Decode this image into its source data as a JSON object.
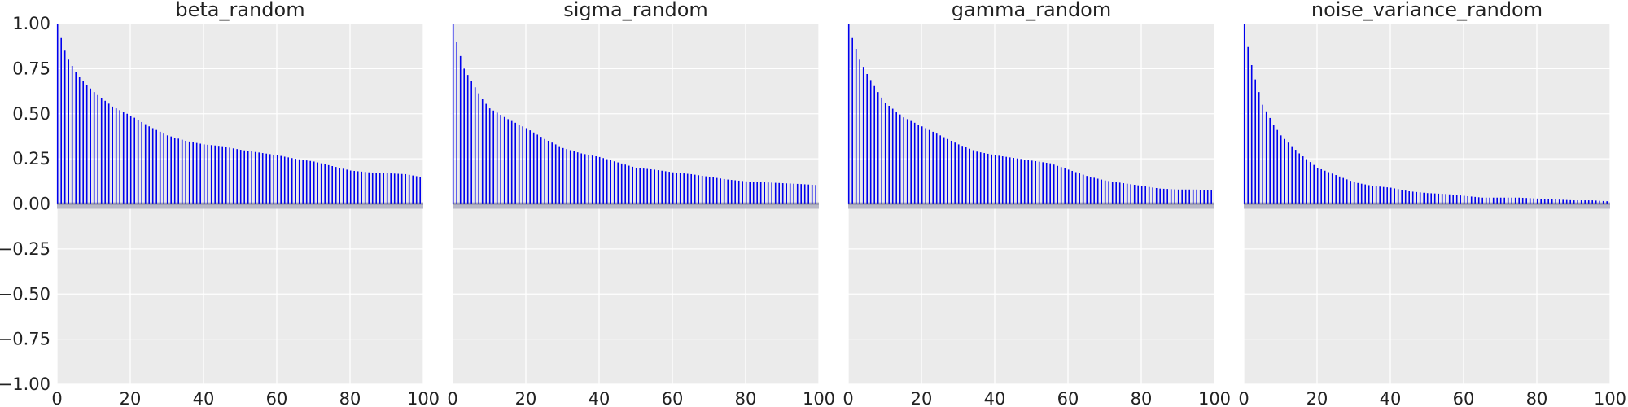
{
  "chart_data": [
    {
      "type": "bar",
      "title": "beta_random",
      "xlabel": "",
      "ylabel": "",
      "xlim": [
        0,
        100
      ],
      "ylim": [
        -1,
        1
      ],
      "xticks": [
        "0",
        "20",
        "40",
        "60",
        "80",
        "100"
      ],
      "yticks": [
        "1.00",
        "0.75",
        "0.50",
        "0.25",
        "0.00",
        "−0.25",
        "−0.50",
        "−0.75",
        "−1.00"
      ],
      "grid": true,
      "bar_color": "#0000ee",
      "anchors": [
        [
          0,
          1.0
        ],
        [
          1,
          0.92
        ],
        [
          2,
          0.85
        ],
        [
          3,
          0.8
        ],
        [
          5,
          0.73
        ],
        [
          8,
          0.66
        ],
        [
          10,
          0.62
        ],
        [
          15,
          0.54
        ],
        [
          20,
          0.49
        ],
        [
          25,
          0.43
        ],
        [
          30,
          0.38
        ],
        [
          35,
          0.35
        ],
        [
          40,
          0.33
        ],
        [
          45,
          0.32
        ],
        [
          50,
          0.3
        ],
        [
          55,
          0.285
        ],
        [
          60,
          0.27
        ],
        [
          65,
          0.25
        ],
        [
          70,
          0.235
        ],
        [
          75,
          0.21
        ],
        [
          80,
          0.185
        ],
        [
          85,
          0.175
        ],
        [
          90,
          0.17
        ],
        [
          95,
          0.165
        ],
        [
          99,
          0.15
        ]
      ]
    },
    {
      "type": "bar",
      "title": "sigma_random",
      "xlabel": "",
      "ylabel": "",
      "xlim": [
        0,
        100
      ],
      "ylim": [
        -1,
        1
      ],
      "xticks": [
        "0",
        "20",
        "40",
        "60",
        "80",
        "100"
      ],
      "yticks": [],
      "grid": true,
      "bar_color": "#0000ee",
      "anchors": [
        [
          0,
          1.0
        ],
        [
          1,
          0.9
        ],
        [
          2,
          0.82
        ],
        [
          3,
          0.75
        ],
        [
          5,
          0.68
        ],
        [
          8,
          0.58
        ],
        [
          10,
          0.53
        ],
        [
          15,
          0.47
        ],
        [
          20,
          0.42
        ],
        [
          25,
          0.36
        ],
        [
          30,
          0.31
        ],
        [
          35,
          0.28
        ],
        [
          40,
          0.26
        ],
        [
          45,
          0.23
        ],
        [
          50,
          0.2
        ],
        [
          55,
          0.19
        ],
        [
          60,
          0.175
        ],
        [
          65,
          0.165
        ],
        [
          70,
          0.15
        ],
        [
          75,
          0.135
        ],
        [
          80,
          0.125
        ],
        [
          85,
          0.12
        ],
        [
          90,
          0.115
        ],
        [
          95,
          0.11
        ],
        [
          99,
          0.105
        ]
      ]
    },
    {
      "type": "bar",
      "title": "gamma_random",
      "xlabel": "",
      "ylabel": "",
      "xlim": [
        0,
        100
      ],
      "ylim": [
        -1,
        1
      ],
      "xticks": [
        "0",
        "20",
        "40",
        "60",
        "80",
        "100"
      ],
      "yticks": [],
      "grid": true,
      "bar_color": "#0000ee",
      "anchors": [
        [
          0,
          1.0
        ],
        [
          1,
          0.92
        ],
        [
          2,
          0.86
        ],
        [
          3,
          0.8
        ],
        [
          5,
          0.72
        ],
        [
          8,
          0.62
        ],
        [
          10,
          0.56
        ],
        [
          15,
          0.48
        ],
        [
          20,
          0.43
        ],
        [
          25,
          0.38
        ],
        [
          30,
          0.33
        ],
        [
          35,
          0.29
        ],
        [
          40,
          0.27
        ],
        [
          45,
          0.255
        ],
        [
          50,
          0.24
        ],
        [
          55,
          0.225
        ],
        [
          60,
          0.19
        ],
        [
          65,
          0.155
        ],
        [
          70,
          0.13
        ],
        [
          75,
          0.115
        ],
        [
          80,
          0.1
        ],
        [
          85,
          0.085
        ],
        [
          90,
          0.08
        ],
        [
          95,
          0.08
        ],
        [
          99,
          0.075
        ]
      ]
    },
    {
      "type": "bar",
      "title": "noise_variance_random",
      "xlabel": "",
      "ylabel": "",
      "xlim": [
        0,
        100
      ],
      "ylim": [
        -1,
        1
      ],
      "xticks": [
        "0",
        "20",
        "40",
        "60",
        "80",
        "100"
      ],
      "yticks": [],
      "grid": true,
      "bar_color": "#0000ee",
      "anchors": [
        [
          0,
          1.0
        ],
        [
          1,
          0.87
        ],
        [
          2,
          0.77
        ],
        [
          3,
          0.69
        ],
        [
          5,
          0.55
        ],
        [
          8,
          0.44
        ],
        [
          10,
          0.38
        ],
        [
          15,
          0.28
        ],
        [
          20,
          0.2
        ],
        [
          25,
          0.16
        ],
        [
          30,
          0.12
        ],
        [
          35,
          0.1
        ],
        [
          40,
          0.09
        ],
        [
          45,
          0.07
        ],
        [
          50,
          0.06
        ],
        [
          55,
          0.055
        ],
        [
          60,
          0.045
        ],
        [
          65,
          0.035
        ],
        [
          70,
          0.035
        ],
        [
          75,
          0.035
        ],
        [
          80,
          0.03
        ],
        [
          85,
          0.025
        ],
        [
          90,
          0.02
        ],
        [
          95,
          0.02
        ],
        [
          99,
          0.015
        ]
      ]
    }
  ]
}
